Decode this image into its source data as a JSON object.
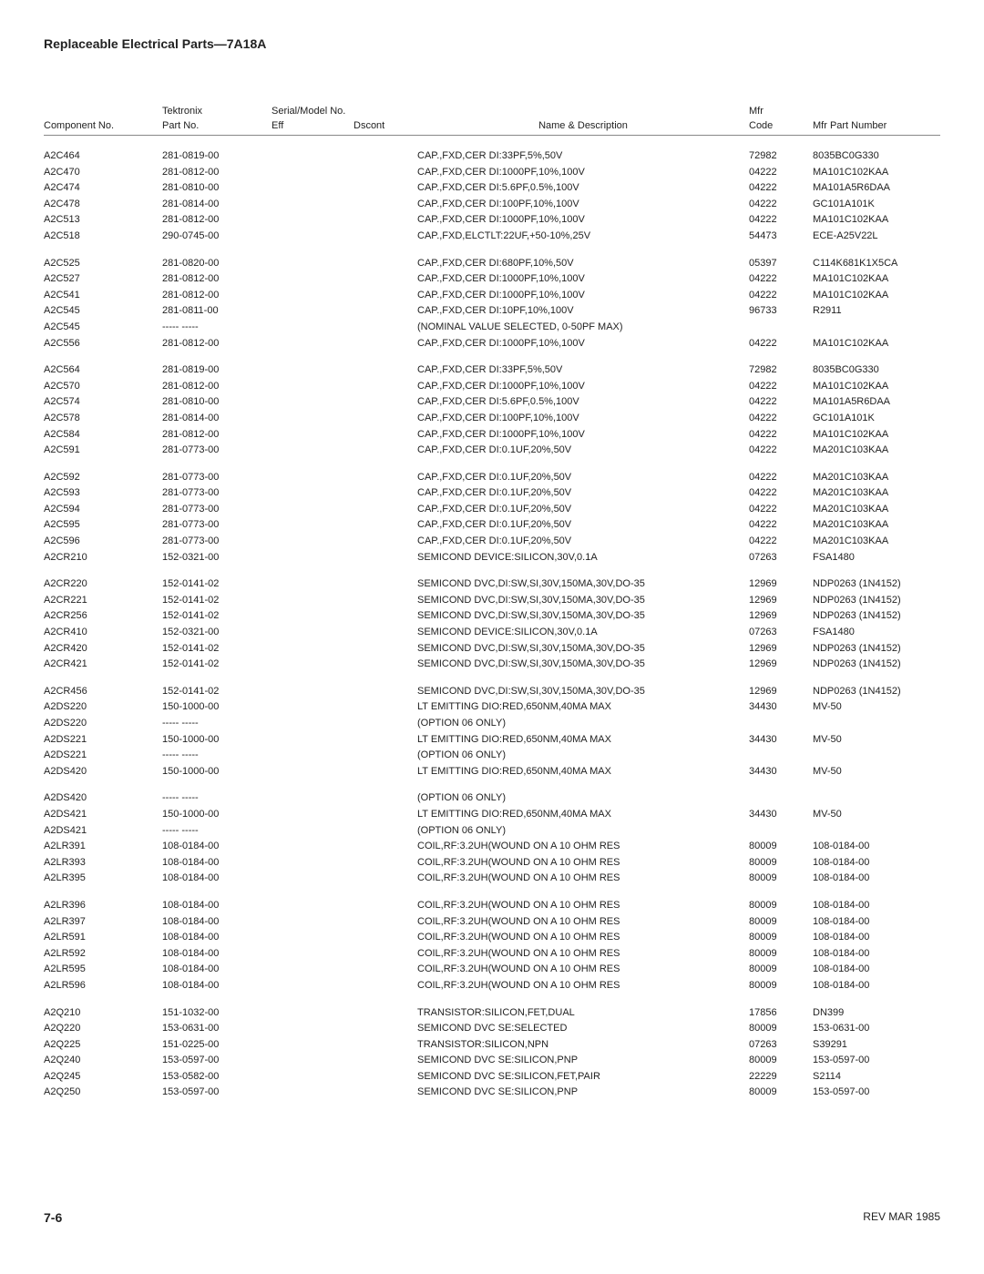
{
  "page_title": "Replaceable Electrical Parts—7A18A",
  "header": {
    "component_no": "Component No.",
    "tektronix": "Tektronix",
    "part_no": "Part No.",
    "serial_model": "Serial/Model No.",
    "eff": "Eff",
    "dscont": "Dscont",
    "name_desc": "Name & Description",
    "mfr": "Mfr",
    "code": "Code",
    "mfr_part": "Mfr Part Number"
  },
  "rows": [
    {
      "c": "A2C464",
      "p": "281-0819-00",
      "d": "CAP.,FXD,CER DI:33PF,5%,50V",
      "m": "72982",
      "n": "8035BC0G330"
    },
    {
      "c": "A2C470",
      "p": "281-0812-00",
      "d": "CAP.,FXD,CER DI:1000PF,10%,100V",
      "m": "04222",
      "n": "MA101C102KAA"
    },
    {
      "c": "A2C474",
      "p": "281-0810-00",
      "d": "CAP.,FXD,CER DI:5.6PF,0.5%,100V",
      "m": "04222",
      "n": "MA101A5R6DAA"
    },
    {
      "c": "A2C478",
      "p": "281-0814-00",
      "d": "CAP.,FXD,CER DI:100PF,10%,100V",
      "m": "04222",
      "n": "GC101A101K"
    },
    {
      "c": "A2C513",
      "p": "281-0812-00",
      "d": "CAP.,FXD,CER DI:1000PF,10%,100V",
      "m": "04222",
      "n": "MA101C102KAA"
    },
    {
      "c": "A2C518",
      "p": "290-0745-00",
      "d": "CAP.,FXD,ELCTLT:22UF,+50-10%,25V",
      "m": "54473",
      "n": "ECE-A25V22L"
    },
    {
      "gap": true,
      "c": "A2C525",
      "p": "281-0820-00",
      "d": "CAP.,FXD,CER DI:680PF,10%,50V",
      "m": "05397",
      "n": "C114K681K1X5CA"
    },
    {
      "c": "A2C527",
      "p": "281-0812-00",
      "d": "CAP.,FXD,CER DI:1000PF,10%,100V",
      "m": "04222",
      "n": "MA101C102KAA"
    },
    {
      "c": "A2C541",
      "p": "281-0812-00",
      "d": "CAP.,FXD,CER DI:1000PF,10%,100V",
      "m": "04222",
      "n": "MA101C102KAA"
    },
    {
      "c": "A2C545",
      "p": "281-0811-00",
      "d": "CAP.,FXD,CER DI:10PF,10%,100V",
      "m": "96733",
      "n": "R2911"
    },
    {
      "c": "A2C545",
      "p": "----- -----",
      "d": "(NOMINAL VALUE SELECTED, 0-50PF MAX)",
      "m": "",
      "n": ""
    },
    {
      "c": "A2C556",
      "p": "281-0812-00",
      "d": "CAP.,FXD,CER DI:1000PF,10%,100V",
      "m": "04222",
      "n": "MA101C102KAA"
    },
    {
      "gap": true,
      "c": "A2C564",
      "p": "281-0819-00",
      "d": "CAP.,FXD,CER DI:33PF,5%,50V",
      "m": "72982",
      "n": "8035BC0G330"
    },
    {
      "c": "A2C570",
      "p": "281-0812-00",
      "d": "CAP.,FXD,CER DI:1000PF,10%,100V",
      "m": "04222",
      "n": "MA101C102KAA"
    },
    {
      "c": "A2C574",
      "p": "281-0810-00",
      "d": "CAP.,FXD,CER DI:5.6PF,0.5%,100V",
      "m": "04222",
      "n": "MA101A5R6DAA"
    },
    {
      "c": "A2C578",
      "p": "281-0814-00",
      "d": "CAP.,FXD,CER DI:100PF,10%,100V",
      "m": "04222",
      "n": "GC101A101K"
    },
    {
      "c": "A2C584",
      "p": "281-0812-00",
      "d": "CAP.,FXD,CER DI:1000PF,10%,100V",
      "m": "04222",
      "n": "MA101C102KAA"
    },
    {
      "c": "A2C591",
      "p": "281-0773-00",
      "d": "CAP.,FXD,CER DI:0.1UF,20%,50V",
      "m": "04222",
      "n": "MA201C103KAA"
    },
    {
      "gap": true,
      "c": "A2C592",
      "p": "281-0773-00",
      "d": "CAP.,FXD,CER DI:0.1UF,20%,50V",
      "m": "04222",
      "n": "MA201C103KAA"
    },
    {
      "c": "A2C593",
      "p": "281-0773-00",
      "d": "CAP.,FXD,CER DI:0.1UF,20%,50V",
      "m": "04222",
      "n": "MA201C103KAA"
    },
    {
      "c": "A2C594",
      "p": "281-0773-00",
      "d": "CAP.,FXD,CER DI:0.1UF,20%,50V",
      "m": "04222",
      "n": "MA201C103KAA"
    },
    {
      "c": "A2C595",
      "p": "281-0773-00",
      "d": "CAP.,FXD,CER DI:0.1UF,20%,50V",
      "m": "04222",
      "n": "MA201C103KAA"
    },
    {
      "c": "A2C596",
      "p": "281-0773-00",
      "d": "CAP.,FXD,CER DI:0.1UF,20%,50V",
      "m": "04222",
      "n": "MA201C103KAA"
    },
    {
      "c": "A2CR210",
      "p": "152-0321-00",
      "d": "SEMICOND DEVICE:SILICON,30V,0.1A",
      "m": "07263",
      "n": "FSA1480"
    },
    {
      "gap": true,
      "c": "A2CR220",
      "p": "152-0141-02",
      "d": "SEMICOND DVC,DI:SW,SI,30V,150MA,30V,DO-35",
      "m": "12969",
      "n": "NDP0263 (1N4152)"
    },
    {
      "c": "A2CR221",
      "p": "152-0141-02",
      "d": "SEMICOND DVC,DI:SW,SI,30V,150MA,30V,DO-35",
      "m": "12969",
      "n": "NDP0263 (1N4152)"
    },
    {
      "c": "A2CR256",
      "p": "152-0141-02",
      "d": "SEMICOND DVC,DI:SW,SI,30V,150MA,30V,DO-35",
      "m": "12969",
      "n": "NDP0263 (1N4152)"
    },
    {
      "c": "A2CR410",
      "p": "152-0321-00",
      "d": "SEMICOND DEVICE:SILICON,30V,0.1A",
      "m": "07263",
      "n": "FSA1480"
    },
    {
      "c": "A2CR420",
      "p": "152-0141-02",
      "d": "SEMICOND DVC,DI:SW,SI,30V,150MA,30V,DO-35",
      "m": "12969",
      "n": "NDP0263 (1N4152)"
    },
    {
      "c": "A2CR421",
      "p": "152-0141-02",
      "d": "SEMICOND DVC,DI:SW,SI,30V,150MA,30V,DO-35",
      "m": "12969",
      "n": "NDP0263 (1N4152)"
    },
    {
      "gap": true,
      "c": "A2CR456",
      "p": "152-0141-02",
      "d": "SEMICOND DVC,DI:SW,SI,30V,150MA,30V,DO-35",
      "m": "12969",
      "n": "NDP0263 (1N4152)"
    },
    {
      "c": "A2DS220",
      "p": "150-1000-00",
      "d": "LT EMITTING DIO:RED,650NM,40MA MAX",
      "m": "34430",
      "n": "MV-50"
    },
    {
      "c": "A2DS220",
      "p": "----- -----",
      "d": "(OPTION 06 ONLY)",
      "m": "",
      "n": ""
    },
    {
      "c": "A2DS221",
      "p": "150-1000-00",
      "d": "LT EMITTING DIO:RED,650NM,40MA MAX",
      "m": "34430",
      "n": "MV-50"
    },
    {
      "c": "A2DS221",
      "p": "----- -----",
      "d": "(OPTION 06 ONLY)",
      "m": "",
      "n": ""
    },
    {
      "c": "A2DS420",
      "p": "150-1000-00",
      "d": "LT EMITTING DIO:RED,650NM,40MA MAX",
      "m": "34430",
      "n": "MV-50"
    },
    {
      "gap": true,
      "c": "A2DS420",
      "p": "----- -----",
      "d": "(OPTION 06 ONLY)",
      "m": "",
      "n": ""
    },
    {
      "c": "A2DS421",
      "p": "150-1000-00",
      "d": "LT EMITTING DIO:RED,650NM,40MA MAX",
      "m": "34430",
      "n": "MV-50"
    },
    {
      "c": "A2DS421",
      "p": "----- -----",
      "d": "(OPTION 06 ONLY)",
      "m": "",
      "n": ""
    },
    {
      "c": "A2LR391",
      "p": "108-0184-00",
      "d": "COIL,RF:3.2UH(WOUND ON A 10 OHM RES",
      "m": "80009",
      "n": "108-0184-00"
    },
    {
      "c": "A2LR393",
      "p": "108-0184-00",
      "d": "COIL,RF:3.2UH(WOUND ON A 10 OHM RES",
      "m": "80009",
      "n": "108-0184-00"
    },
    {
      "c": "A2LR395",
      "p": "108-0184-00",
      "d": "COIL,RF:3.2UH(WOUND ON A 10 OHM RES",
      "m": "80009",
      "n": "108-0184-00"
    },
    {
      "gap": true,
      "c": "A2LR396",
      "p": "108-0184-00",
      "d": "COIL,RF:3.2UH(WOUND ON A 10 OHM RES",
      "m": "80009",
      "n": "108-0184-00"
    },
    {
      "c": "A2LR397",
      "p": "108-0184-00",
      "d": "COIL,RF:3.2UH(WOUND ON A 10 OHM RES",
      "m": "80009",
      "n": "108-0184-00"
    },
    {
      "c": "A2LR591",
      "p": "108-0184-00",
      "d": "COIL,RF:3.2UH(WOUND ON A 10 OHM RES",
      "m": "80009",
      "n": "108-0184-00"
    },
    {
      "c": "A2LR592",
      "p": "108-0184-00",
      "d": "COIL,RF:3.2UH(WOUND ON A 10 OHM RES",
      "m": "80009",
      "n": "108-0184-00"
    },
    {
      "c": "A2LR595",
      "p": "108-0184-00",
      "d": "COIL,RF:3.2UH(WOUND ON A 10 OHM RES",
      "m": "80009",
      "n": "108-0184-00"
    },
    {
      "c": "A2LR596",
      "p": "108-0184-00",
      "d": "COIL,RF:3.2UH(WOUND ON A 10 OHM RES",
      "m": "80009",
      "n": "108-0184-00"
    },
    {
      "gap": true,
      "c": "A2Q210",
      "p": "151-1032-00",
      "d": "TRANSISTOR:SILICON,FET,DUAL",
      "m": "17856",
      "n": "DN399"
    },
    {
      "c": "A2Q220",
      "p": "153-0631-00",
      "d": "SEMICOND DVC SE:SELECTED",
      "m": "80009",
      "n": "153-0631-00"
    },
    {
      "c": "A2Q225",
      "p": "151-0225-00",
      "d": "TRANSISTOR:SILICON,NPN",
      "m": "07263",
      "n": "S39291"
    },
    {
      "c": "A2Q240",
      "p": "153-0597-00",
      "d": "SEMICOND DVC SE:SILICON,PNP",
      "m": "80009",
      "n": "153-0597-00"
    },
    {
      "c": "A2Q245",
      "p": "153-0582-00",
      "d": "SEMICOND DVC SE:SILICON,FET,PAIR",
      "m": "22229",
      "n": "S2114"
    },
    {
      "c": "A2Q250",
      "p": "153-0597-00",
      "d": "SEMICOND DVC SE:SILICON,PNP",
      "m": "80009",
      "n": "153-0597-00"
    }
  ],
  "footer": {
    "page": "7-6",
    "rev": "REV MAR 1985"
  }
}
